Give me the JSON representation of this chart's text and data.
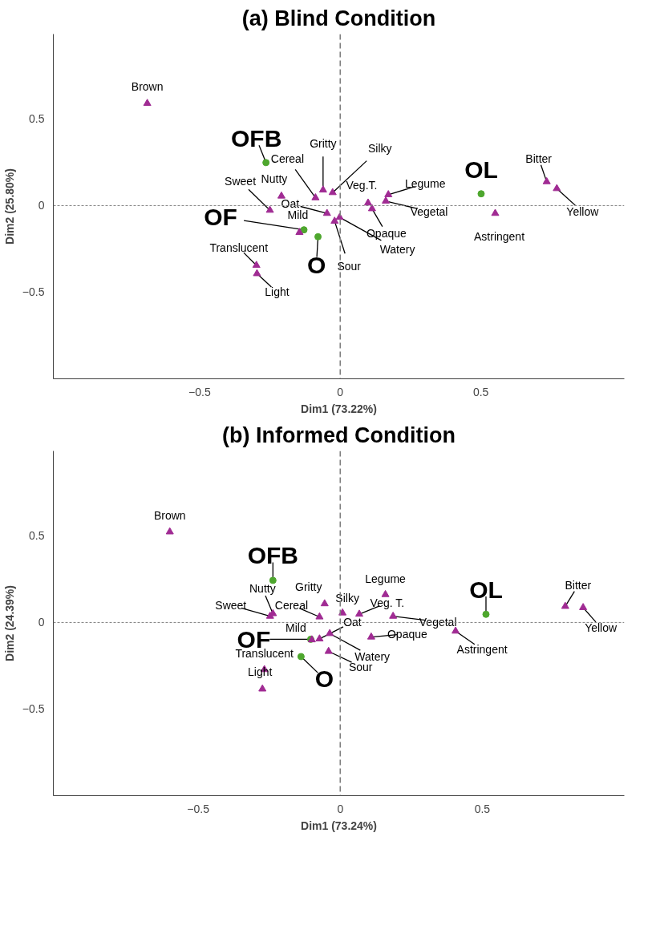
{
  "chart_data": [
    {
      "type": "scatter",
      "title": "(a) Blind Condition",
      "xlabel": "Dim1 (73.22%)",
      "ylabel": "Dim2 (25.80%)",
      "xlim": [
        -1.02,
        1.01
      ],
      "ylim": [
        -1.0,
        0.99
      ],
      "xticks": [
        -0.5,
        0,
        0.5
      ],
      "yticks": [
        -0.5,
        0,
        0.5
      ],
      "grid": false,
      "ref_lines": [
        {
          "axis": "x",
          "value": 0,
          "color": "#7f7f7f",
          "line_style": "dashed"
        },
        {
          "axis": "y",
          "value": 0,
          "color": "#7f7f7f",
          "line_style": "dotted"
        }
      ],
      "series": [
        {
          "color": "#4ea72e",
          "marker": "circle",
          "x": [
            -0.079,
            -0.129,
            -0.264,
            0.501
          ],
          "values": [
            -0.18,
            -0.14,
            0.248,
            0.068
          ],
          "value_labels": [
            "O",
            "OF",
            "OFB",
            "OL"
          ]
        },
        {
          "color": "#a02b93",
          "marker": "triangle",
          "x": [
            -0.686,
            -0.088,
            -0.061,
            -0.027,
            -0.209,
            -0.25,
            -0.047,
            -0.145,
            -0.02,
            -0.002,
            -0.298,
            -0.296,
            0.099,
            0.113,
            0.171,
            0.162,
            0.551,
            0.734,
            0.77
          ],
          "values": [
            0.59,
            0.045,
            0.09,
            0.075,
            0.055,
            -0.027,
            -0.045,
            -0.155,
            -0.09,
            -0.068,
            -0.345,
            -0.393,
            0.015,
            -0.018,
            0.063,
            0.026,
            -0.045,
            0.138,
            0.098
          ],
          "value_labels": [
            "Brown",
            "Cereal",
            "Gritty",
            "Silky",
            "Nutty",
            "Sweet",
            "Oat",
            "Mild",
            "Sour",
            "Watery",
            "Translucent",
            "Light",
            "Veg.T.",
            "Opaque",
            "Legume",
            "Vegetal",
            "Astringent",
            "Bitter",
            "Yellow"
          ]
        }
      ]
    },
    {
      "type": "scatter",
      "title": "(b) Informed Condition",
      "xlabel": "Dim1 (73.24%)",
      "ylabel": "Dim2 (24.39%)",
      "xlim": [
        -1.01,
        1.0
      ],
      "ylim": [
        -1.0,
        0.99
      ],
      "xticks": [
        -0.5,
        0,
        0.5
      ],
      "yticks": [
        -0.5,
        0,
        0.5
      ],
      "grid": false,
      "ref_lines": [
        {
          "axis": "x",
          "value": 0,
          "color": "#7f7f7f",
          "line_style": "dashed"
        },
        {
          "axis": "y",
          "value": 0,
          "color": "#7f7f7f",
          "line_style": "dotted"
        }
      ],
      "series": [
        {
          "color": "#4ea72e",
          "marker": "circle",
          "x": [
            -0.138,
            -0.104,
            -0.237,
            0.513
          ],
          "values": [
            -0.197,
            -0.097,
            0.243,
            0.047
          ],
          "value_labels": [
            "O",
            "OF",
            "OFB",
            "OL"
          ]
        },
        {
          "color": "#a02b93",
          "marker": "triangle",
          "x": [
            -0.6,
            -0.073,
            -0.055,
            0.008,
            -0.237,
            -0.247,
            -0.073,
            -0.1,
            -0.041,
            -0.037,
            -0.267,
            -0.274,
            0.067,
            0.109,
            0.159,
            0.186,
            0.406,
            0.792,
            0.855
          ],
          "values": [
            0.523,
            0.032,
            0.108,
            0.055,
            0.051,
            0.036,
            -0.095,
            -0.1,
            -0.167,
            -0.064,
            -0.272,
            -0.384,
            0.048,
            -0.084,
            0.161,
            0.036,
            -0.05,
            0.093,
            0.086
          ],
          "value_labels": [
            "Brown",
            "Cereal",
            "Gritty",
            "Silky",
            "Nutty",
            "Sweet",
            "Oat",
            "Mild",
            "Sour",
            "Watery",
            "Translucent",
            "Light",
            "Veg. T.",
            "Opaque",
            "Legume",
            "Vegetal",
            "Astringent",
            "Bitter",
            "Yellow"
          ]
        }
      ]
    }
  ]
}
